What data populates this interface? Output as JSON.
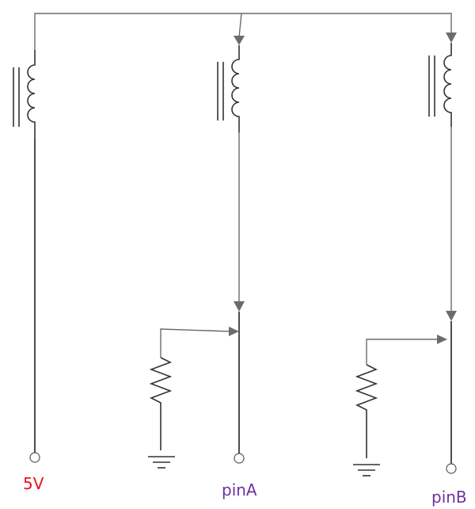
{
  "labels": {
    "supply": "5V",
    "pin_a": "pinA",
    "pin_b": "pinB"
  },
  "colors": {
    "supply_label": "#e8141c",
    "pin_label": "#7030a0",
    "wire": "#6b6b6b",
    "component": "#333333"
  }
}
